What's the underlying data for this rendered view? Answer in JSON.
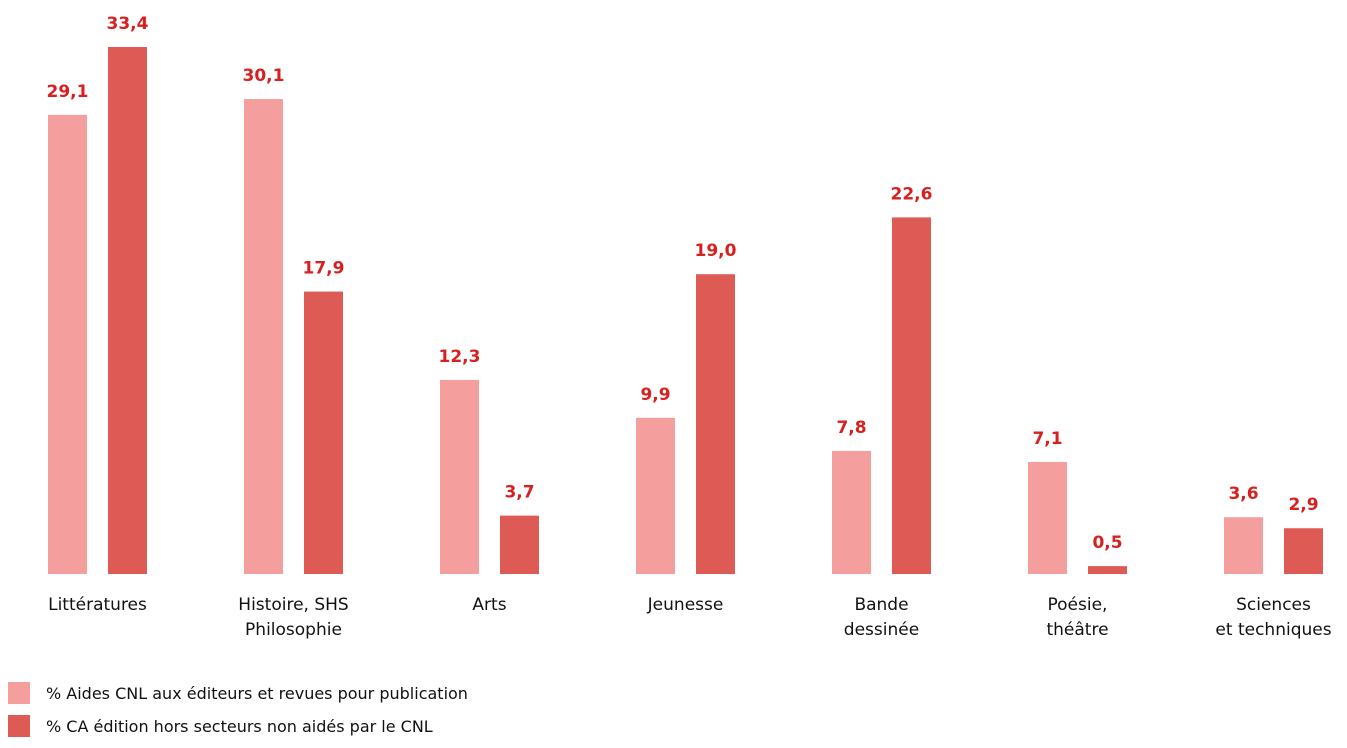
{
  "colors": {
    "series_a": "#f49e9e",
    "series_b": "#de5a55",
    "value_label": "#d7201f",
    "text": "#111111"
  },
  "chart_data": {
    "type": "bar",
    "categories": [
      [
        "Littératures"
      ],
      [
        "Histoire, SHS",
        "Philosophie"
      ],
      [
        "Arts"
      ],
      [
        "Jeunesse"
      ],
      [
        "Bande",
        "dessinée"
      ],
      [
        "Poésie,",
        "théâtre"
      ],
      [
        "Sciences",
        "et techniques"
      ]
    ],
    "series": [
      {
        "name": "% Aides CNL aux éditeurs et revues pour publication",
        "values": [
          29.1,
          30.1,
          12.3,
          9.9,
          7.8,
          7.1,
          3.6
        ],
        "labels": [
          "29,1",
          "30,1",
          "12,3",
          "9,9",
          "7,8",
          "7,1",
          "3,6"
        ]
      },
      {
        "name": "% CA édition hors secteurs non aidés par le CNL",
        "values": [
          33.4,
          17.9,
          3.7,
          19.0,
          22.6,
          0.5,
          2.9
        ],
        "labels": [
          "33,4",
          "17,9",
          "3,7",
          "19,0",
          "22,6",
          "0,5",
          "2,9"
        ]
      }
    ],
    "ylim": [
      0,
      33.4
    ],
    "grid": false,
    "legend_position": "bottom-left",
    "title": "",
    "xlabel": "",
    "ylabel": ""
  }
}
